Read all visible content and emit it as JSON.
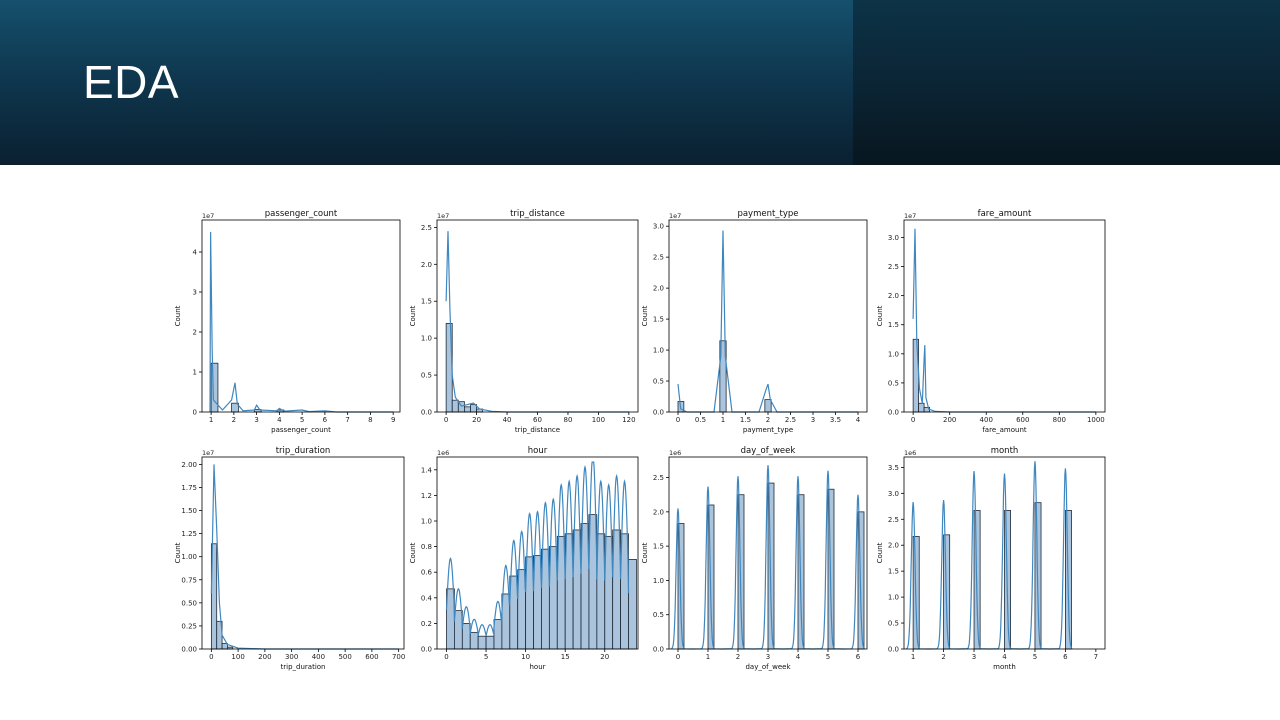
{
  "slide": {
    "title": "EDA"
  },
  "colors": {
    "bar_fill": "#a9c4dc",
    "bar_stroke": "#1f2a38",
    "kde_line": "#3f87bf",
    "axis": "#000000"
  },
  "chart_data": [
    {
      "type": "bar",
      "title": "passenger_count",
      "xlabel": "passenger_count",
      "ylabel": "Count",
      "scale_label": "1e7",
      "xlim": [
        0.6,
        9.3
      ],
      "ylim": [
        0,
        4.8
      ],
      "xticks": [
        1,
        2,
        3,
        4,
        5,
        6,
        7,
        8,
        9
      ],
      "yticks": [
        0,
        1,
        2,
        3,
        4
      ],
      "bins": [
        [
          1,
          1.3,
          1.22
        ],
        [
          1.9,
          2.2,
          0.22
        ],
        [
          2.9,
          3.2,
          0.06
        ],
        [
          3.9,
          4.2,
          0.05
        ]
      ],
      "kde": [
        [
          0.95,
          0
        ],
        [
          0.98,
          4.5
        ],
        [
          1.05,
          1.5
        ],
        [
          1.1,
          0.3
        ],
        [
          1.5,
          0.05
        ],
        [
          1.9,
          0.3
        ],
        [
          2.05,
          0.73
        ],
        [
          2.15,
          0.2
        ],
        [
          2.4,
          0.03
        ],
        [
          2.9,
          0.05
        ],
        [
          3.0,
          0.17
        ],
        [
          3.15,
          0.05
        ],
        [
          3.9,
          0.03
        ],
        [
          4.0,
          0.09
        ],
        [
          4.2,
          0.02
        ],
        [
          5.0,
          0.05
        ],
        [
          5.3,
          0.01
        ],
        [
          6,
          0.03
        ],
        [
          6.5,
          0
        ],
        [
          9,
          0
        ]
      ]
    },
    {
      "type": "bar",
      "title": "trip_distance",
      "xlabel": "trip_distance",
      "ylabel": "Count",
      "scale_label": "1e7",
      "xlim": [
        -6,
        126
      ],
      "ylim": [
        0,
        2.6
      ],
      "xticks": [
        0,
        20,
        40,
        60,
        80,
        100,
        120
      ],
      "yticks": [
        0,
        0.5,
        1.0,
        1.5,
        2.0,
        2.5
      ],
      "bins": [
        [
          0,
          4,
          1.2
        ],
        [
          4,
          8,
          0.16
        ],
        [
          8,
          12,
          0.14
        ],
        [
          12,
          16,
          0.07
        ],
        [
          16,
          20,
          0.1
        ],
        [
          20,
          24,
          0.04
        ]
      ],
      "kde": [
        [
          0,
          1.5
        ],
        [
          1.2,
          2.45
        ],
        [
          2.5,
          1.4
        ],
        [
          4,
          0.5
        ],
        [
          6,
          0.2
        ],
        [
          10,
          0.08
        ],
        [
          14,
          0.1
        ],
        [
          18,
          0.12
        ],
        [
          22,
          0.04
        ],
        [
          30,
          0.01
        ],
        [
          40,
          0
        ],
        [
          120,
          0
        ]
      ]
    },
    {
      "type": "bar",
      "title": "payment_type",
      "xlabel": "payment_type",
      "ylabel": "Count",
      "scale_label": "1e7",
      "xlim": [
        -0.2,
        4.2
      ],
      "ylim": [
        0,
        3.1
      ],
      "xticks": [
        0,
        0.5,
        1.0,
        1.5,
        2.0,
        2.5,
        3.0,
        3.5,
        4.0
      ],
      "yticks": [
        0,
        0.5,
        1.0,
        1.5,
        2.0,
        2.5,
        3.0
      ],
      "bins": [
        [
          0,
          0.13,
          0.17
        ],
        [
          0.93,
          1.07,
          1.15
        ],
        [
          1.93,
          2.07,
          0.2
        ]
      ],
      "kde": [
        [
          0,
          0.45
        ],
        [
          0.06,
          0.05
        ],
        [
          0.2,
          0
        ],
        [
          0.8,
          0
        ],
        [
          0.95,
          0.9
        ],
        [
          1.0,
          2.93
        ],
        [
          1.05,
          0.9
        ],
        [
          1.2,
          0
        ],
        [
          1.8,
          0
        ],
        [
          1.95,
          0.35
        ],
        [
          2.0,
          0.45
        ],
        [
          2.05,
          0.2
        ],
        [
          2.2,
          0
        ],
        [
          4.0,
          0
        ]
      ]
    },
    {
      "type": "bar",
      "title": "fare_amount",
      "xlabel": "fare_amount",
      "ylabel": "Count",
      "scale_label": "1e7",
      "xlim": [
        -50,
        1050
      ],
      "ylim": [
        0,
        3.3
      ],
      "xticks": [
        0,
        200,
        400,
        600,
        800,
        1000
      ],
      "yticks": [
        0,
        0.5,
        1.0,
        1.5,
        2.0,
        2.5,
        3.0
      ],
      "bins": [
        [
          0,
          30,
          1.25
        ],
        [
          30,
          60,
          0.15
        ],
        [
          60,
          90,
          0.08
        ]
      ],
      "kde": [
        [
          0,
          1.6
        ],
        [
          10,
          3.15
        ],
        [
          20,
          1.2
        ],
        [
          35,
          0.4
        ],
        [
          50,
          0.15
        ],
        [
          60,
          0.9
        ],
        [
          64,
          1.15
        ],
        [
          70,
          0.25
        ],
        [
          85,
          0.05
        ],
        [
          120,
          0.01
        ],
        [
          200,
          0
        ],
        [
          1000,
          0
        ]
      ]
    },
    {
      "type": "bar",
      "title": "trip_duration",
      "xlabel": "trip_duration",
      "ylabel": "Count",
      "scale_label": "1e7",
      "xlim": [
        -35,
        720
      ],
      "ylim": [
        0,
        2.08
      ],
      "xticks": [
        0,
        100,
        200,
        300,
        400,
        500,
        600,
        700
      ],
      "yticks": [
        0,
        0.25,
        0.5,
        0.75,
        1.0,
        1.25,
        1.5,
        1.75,
        2.0
      ],
      "bins": [
        [
          0,
          20,
          1.14
        ],
        [
          20,
          40,
          0.3
        ],
        [
          40,
          60,
          0.06
        ],
        [
          60,
          80,
          0.02
        ]
      ],
      "kde": [
        [
          0,
          0.6
        ],
        [
          10,
          2.0
        ],
        [
          20,
          1.3
        ],
        [
          30,
          0.5
        ],
        [
          40,
          0.15
        ],
        [
          60,
          0.05
        ],
        [
          100,
          0.01
        ],
        [
          200,
          0
        ],
        [
          700,
          0
        ]
      ]
    },
    {
      "type": "bar",
      "title": "hour",
      "xlabel": "hour",
      "ylabel": "Count",
      "scale_label": "1e6",
      "xlim": [
        -1.2,
        24.2
      ],
      "ylim": [
        0,
        1.5
      ],
      "xticks": [
        0,
        5,
        10,
        15,
        20
      ],
      "yticks": [
        0,
        0.2,
        0.4,
        0.6,
        0.8,
        1.0,
        1.2,
        1.4
      ],
      "bins": [
        [
          0,
          1,
          0.47
        ],
        [
          1,
          2,
          0.3
        ],
        [
          2,
          3,
          0.2
        ],
        [
          3,
          4,
          0.13
        ],
        [
          4,
          5,
          0.1
        ],
        [
          5,
          6,
          0.1
        ],
        [
          6,
          7,
          0.23
        ],
        [
          7,
          8,
          0.43
        ],
        [
          8,
          9,
          0.57
        ],
        [
          9,
          10,
          0.62
        ],
        [
          10,
          11,
          0.72
        ],
        [
          11,
          12,
          0.73
        ],
        [
          12,
          13,
          0.78
        ],
        [
          13,
          14,
          0.8
        ],
        [
          14,
          15,
          0.88
        ],
        [
          15,
          16,
          0.9
        ],
        [
          16,
          17,
          0.93
        ],
        [
          17,
          18,
          0.98
        ],
        [
          18,
          19,
          1.05
        ],
        [
          19,
          20,
          0.9
        ],
        [
          20,
          21,
          0.88
        ],
        [
          21,
          22,
          0.93
        ],
        [
          22,
          23,
          0.9
        ],
        [
          23,
          24,
          0.7
        ]
      ]
    },
    {
      "type": "bar",
      "title": "day_of_week",
      "xlabel": "day_of_week",
      "ylabel": "Count",
      "scale_label": "1e6",
      "xlim": [
        -0.3,
        6.3
      ],
      "ylim": [
        0,
        2.8
      ],
      "xticks": [
        0,
        1,
        2,
        3,
        4,
        5,
        6
      ],
      "yticks": [
        0,
        0.5,
        1.0,
        1.5,
        2.0,
        2.5
      ],
      "bins": [
        [
          0,
          0.2,
          1.83
        ],
        [
          1,
          1.2,
          2.1
        ],
        [
          2,
          2.2,
          2.25
        ],
        [
          3,
          3.2,
          2.42
        ],
        [
          4,
          4.2,
          2.25
        ],
        [
          5,
          5.2,
          2.33
        ],
        [
          6,
          6.2,
          2.0
        ]
      ],
      "peaks": [
        2.05,
        2.37,
        2.52,
        2.68,
        2.52,
        2.6,
        2.25
      ]
    },
    {
      "type": "bar",
      "title": "month",
      "xlabel": "month",
      "ylabel": "Count",
      "scale_label": "1e6",
      "xlim": [
        0.7,
        7.3
      ],
      "ylim": [
        0,
        3.7
      ],
      "xticks": [
        1,
        2,
        3,
        4,
        5,
        6,
        7
      ],
      "yticks": [
        0,
        0.5,
        1.0,
        1.5,
        2.0,
        2.5,
        3.0,
        3.5
      ],
      "bins": [
        [
          1,
          1.2,
          2.17
        ],
        [
          2,
          2.2,
          2.2
        ],
        [
          3,
          3.2,
          2.67
        ],
        [
          4,
          4.2,
          2.67
        ],
        [
          5,
          5.2,
          2.82
        ],
        [
          6,
          6.2,
          2.67
        ]
      ],
      "peaks": [
        2.83,
        2.87,
        3.43,
        3.38,
        3.62,
        3.48
      ]
    }
  ]
}
